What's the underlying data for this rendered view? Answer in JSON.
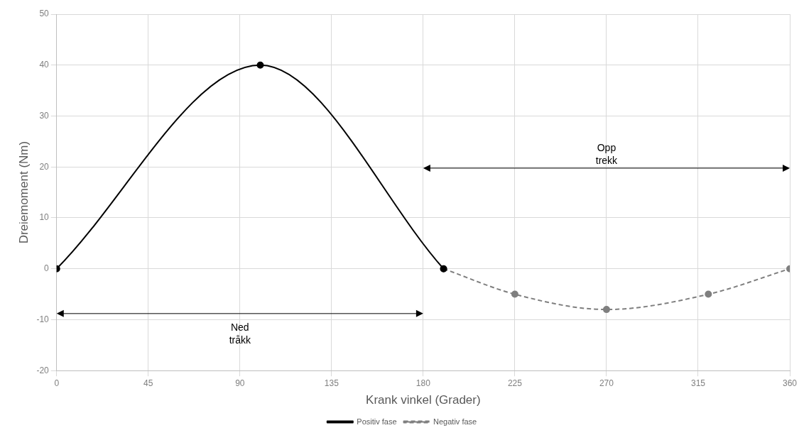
{
  "chart_data": {
    "type": "line",
    "xlabel": "Krank vinkel (Grader)",
    "ylabel": "Dreiemoment (Nm)",
    "xlim": [
      0,
      360
    ],
    "xticks": [
      0,
      45,
      90,
      135,
      180,
      225,
      270,
      315,
      360
    ],
    "ylim": [
      -20,
      50
    ],
    "yticks": [
      -20,
      -10,
      0,
      10,
      20,
      30,
      40,
      50
    ],
    "grid": true,
    "legend": "bottom",
    "marker": "circle",
    "series": [
      {
        "name": "Positiv fase",
        "color": "#000000",
        "line_style": "solid",
        "x": [
          0,
          100,
          190
        ],
        "values": [
          0,
          40,
          0
        ]
      },
      {
        "name": "Negativ fase",
        "color": "#7f7f7f",
        "line_style": "dashed",
        "x": [
          190,
          225,
          270,
          320,
          360
        ],
        "values": [
          0,
          -5,
          -8,
          -5,
          0
        ]
      }
    ],
    "annotations": [
      "Ned\ntråkk",
      "Opp\ntrekk"
    ]
  }
}
